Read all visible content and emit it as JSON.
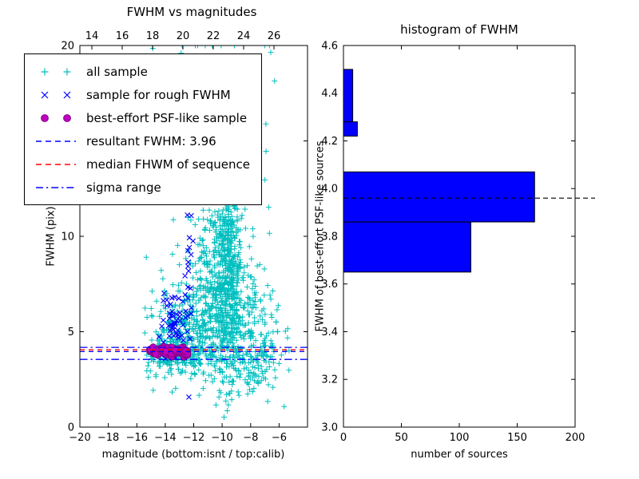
{
  "chart_data": [
    {
      "type": "scatter",
      "title": "FWHM vs magnitudes",
      "xlabel": "magnitude (bottom:isnt / top:calib)",
      "ylabel": "FWHM (pix)",
      "xlim": [
        -20,
        -4
      ],
      "ylim": [
        0,
        20
      ],
      "grid": false,
      "legend_position": "upper left",
      "bottom_xticks": {
        "values": [
          -20,
          -18,
          -16,
          -14,
          -12,
          -10,
          -8,
          -6
        ],
        "labels": [
          "−20",
          "−18",
          "−16",
          "−14",
          "−12",
          "−10",
          "−8",
          "−6"
        ]
      },
      "top_xticks": {
        "values": [
          14,
          16,
          18,
          20,
          22,
          24,
          26
        ],
        "labels": [
          "14",
          "16",
          "18",
          "20",
          "22",
          "24",
          "26"
        ]
      },
      "yticks": {
        "values": [
          0,
          5,
          10,
          15,
          20
        ],
        "labels": [
          "0",
          "5",
          "10",
          "15",
          "20"
        ]
      },
      "series": [
        {
          "name": "all sample",
          "marker": "+",
          "color": "#00bfbf",
          "xdist": "normal",
          "clusters": [
            [
              550,
              -10.2,
              1.3,
              6.5,
              2.2
            ],
            [
              350,
              -9.6,
              0.45,
              8.5,
              3.0
            ],
            [
              280,
              -12.8,
              1.3,
              4.8,
              1.2
            ],
            [
              180,
              -11.0,
              2.2,
              15.5,
              3.0
            ],
            [
              160,
              -13.6,
              0.9,
              3.8,
              0.35
            ],
            [
              120,
              -8.0,
              1.1,
              3.6,
              0.9
            ],
            [
              60,
              -7.0,
              0.8,
              5.0,
              1.5
            ]
          ]
        },
        {
          "name": "sample for rough FWHM",
          "marker": "x",
          "color": "#0000ff",
          "xdist": "normal",
          "clusters": [
            [
              55,
              -13.2,
              0.55,
              5.3,
              0.9
            ],
            [
              22,
              -12.35,
              0.12,
              8.5,
              2.2
            ]
          ]
        },
        {
          "name": "best-effort PSF-like sample",
          "marker": "o",
          "color": "#bf00bf",
          "edge_color": "#7a007a",
          "xdist": "uniform",
          "clusters": [
            [
              85,
              -13.75,
              1.35,
              3.95,
              0.13
            ]
          ]
        }
      ],
      "hlines": [
        {
          "y": 3.96,
          "color": "#0000ff",
          "style": "dashed",
          "label": "resultant FWHM: 3.96"
        },
        {
          "y": 4.05,
          "color": "#ff0000",
          "style": "dashed",
          "label": "median FHWM of sequence"
        },
        {
          "y": 4.18,
          "color": "#0000ff",
          "style": "dashdot",
          "label": "sigma range"
        },
        {
          "y": 3.55,
          "color": "#0000ff",
          "style": "dashdot",
          "label": "sigma range"
        }
      ],
      "legend": [
        {
          "label": "all sample",
          "swatch": "plus",
          "color": "#00bfbf"
        },
        {
          "label": "sample for rough FWHM",
          "swatch": "x",
          "color": "#0000ff"
        },
        {
          "label": "best-effort PSF-like sample",
          "swatch": "circle",
          "color": "#bf00bf"
        },
        {
          "label": "resultant FWHM: 3.96",
          "swatch": "dashed",
          "color": "#0000ff"
        },
        {
          "label": "median FHWM of sequence",
          "swatch": "dashed",
          "color": "#ff0000"
        },
        {
          "label": "sigma range",
          "swatch": "dashdot",
          "color": "#0000ff"
        }
      ]
    },
    {
      "type": "bar",
      "orientation": "horizontal",
      "title": "histogram of FWHM",
      "xlabel": "number of sources",
      "ylabel": "FWHM of best-effort PSF-like sources",
      "xlim": [
        0,
        200
      ],
      "ylim": [
        3.0,
        4.6
      ],
      "grid": false,
      "bar_color": "#0000ff",
      "xticks": {
        "values": [
          0,
          50,
          100,
          150,
          200
        ],
        "labels": [
          "0",
          "50",
          "100",
          "150",
          "200"
        ]
      },
      "yticks": {
        "values": [
          3.0,
          3.2,
          3.4,
          3.6,
          3.8,
          4.0,
          4.2,
          4.4,
          4.6
        ],
        "labels": [
          "3.0",
          "3.2",
          "3.4",
          "3.6",
          "3.8",
          "4.0",
          "4.2",
          "4.4",
          "4.6"
        ]
      },
      "bins": [
        {
          "lo": 3.65,
          "hi": 3.86,
          "count": 110
        },
        {
          "lo": 3.86,
          "hi": 4.07,
          "count": 165
        },
        {
          "lo": 4.22,
          "hi": 4.28,
          "count": 12
        },
        {
          "lo": 4.28,
          "hi": 4.5,
          "count": 8
        }
      ],
      "dashed_line_y": 3.96
    }
  ]
}
